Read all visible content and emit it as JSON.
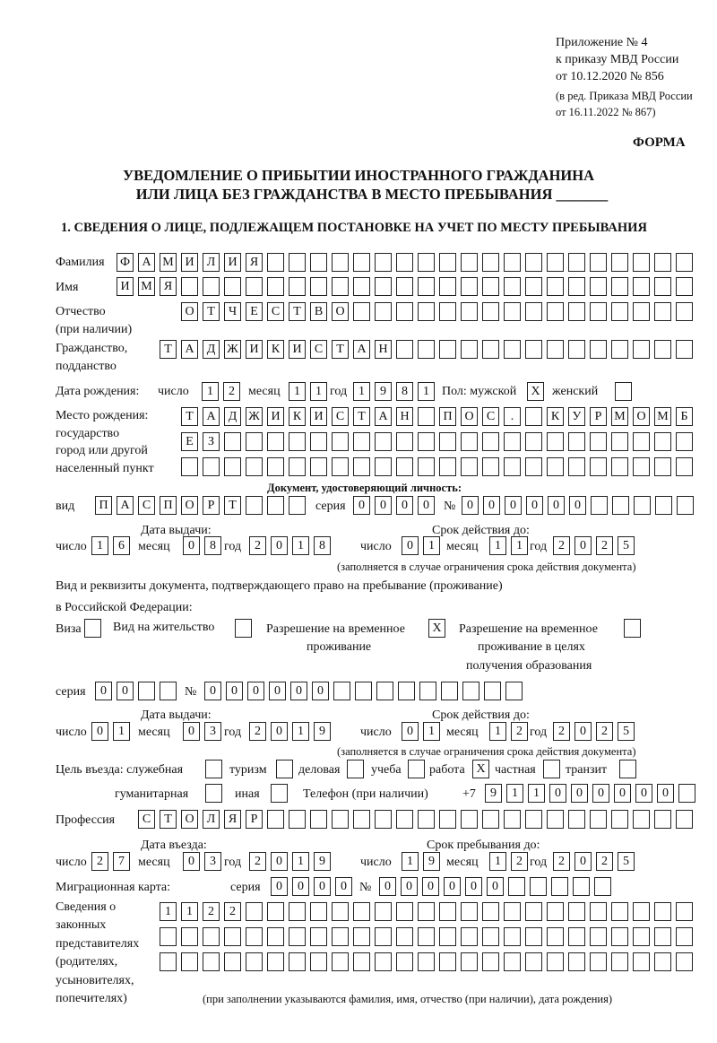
{
  "header": {
    "appendix": [
      "Приложение № 4",
      "к приказу МВД России",
      "от 10.12.2020 № 856"
    ],
    "amendment": [
      "(в ред. Приказа МВД России",
      "от 16.11.2022 № 867)"
    ],
    "form_label": "ФОРМА",
    "title": [
      "УВЕДОМЛЕНИЕ О ПРИБЫТИИ ИНОСТРАННОГО ГРАЖДАНИНА",
      "ИЛИ ЛИЦА БЕЗ ГРАЖДАНСТВА В МЕСТО ПРЕБЫВАНИЯ _______"
    ],
    "section1": "1. СВЕДЕНИЯ О ЛИЦЕ, ПОДЛЕЖАЩЕМ ПОСТАНОВКЕ НА УЧЕТ ПО МЕСТУ ПРЕБЫВАНИЯ"
  },
  "labels": {
    "surname": "Фамилия",
    "name": "Имя",
    "patronymic": "Отчество",
    "patronymic_note": "(при наличии)",
    "citizenship": "Гражданство,",
    "citizenship2": "подданство",
    "birth_date": "Дата рождения:",
    "day": "число",
    "month": "месяц",
    "year": "год",
    "sex": "Пол: мужской",
    "female": "женский",
    "birth_place": [
      "Место рождения:",
      "государство",
      "город или другой",
      "населенный пункт"
    ],
    "id_doc": "Документ, удостоверяющий личность:",
    "kind": "вид",
    "series": "серия",
    "number": "№",
    "issue_date": "Дата выдачи:",
    "valid_until": "Срок действия до:",
    "valid_note": "(заполняется в случае ограничения срока действия документа)",
    "right_doc": [
      "Вид и реквизиты документа, подтверждающего право на пребывание (проживание)",
      "в Российской Федерации:"
    ],
    "visa": "Виза",
    "residence": "Вид на жительство",
    "trp": [
      "Разрешение на временное",
      "проживание"
    ],
    "trp_edu": [
      "Разрешение на временное",
      "проживание в целях",
      "получения образования"
    ],
    "purpose": "Цель въезда: служебная",
    "tourism": "туризм",
    "business": "деловая",
    "study": "учеба",
    "work": "работа",
    "private": "частная",
    "transit": "транзит",
    "humanitarian": "гуманитарная",
    "other": "иная",
    "phone": "Телефон (при наличии)",
    "phone_prefix": "+7",
    "profession": "Профессия",
    "entry_date": "Дата въезда:",
    "stay_until": "Срок пребывания до:",
    "migration_card": "Миграционная карта:",
    "legal_reps": [
      "Сведения о",
      "законных",
      "представителях",
      "(родителях,",
      "усыновителях,",
      "попечителях)"
    ],
    "legal_reps_note": "(при заполнении указываются фамилия, имя, отчество (при наличии), дата рождения)"
  },
  "fields": {
    "surname": "ФАМИЛИЯ",
    "name": "ИМЯ",
    "patronymic": "ОТЧЕСТВО",
    "citizenship": "ТАДЖИКИСТАН",
    "birth_day": "12",
    "birth_month": "11",
    "birth_year": "1981",
    "sex_male": "X",
    "sex_female": "",
    "birth_place": [
      "ТАДЖИКИСТАН ПОС. КУРМОМБ",
      "ЕЗ",
      ""
    ],
    "doc_kind": "ПАСПОРТ",
    "doc_series": "0000",
    "doc_number": "000000",
    "doc_issue": {
      "day": "16",
      "month": "08",
      "year": "2018"
    },
    "doc_valid": {
      "day": "01",
      "month": "11",
      "year": "2025"
    },
    "right_doc_type": {
      "visa": "",
      "residence": "",
      "trp": "X",
      "trp_edu": ""
    },
    "right_series": "00",
    "right_number": "000000",
    "right_issue": {
      "day": "01",
      "month": "03",
      "year": "2019"
    },
    "right_valid": {
      "day": "01",
      "month": "12",
      "year": "2025"
    },
    "purpose": {
      "official": "",
      "tourism": "",
      "business": "",
      "study": "",
      "work": "X",
      "private": "",
      "transit": "",
      "humanitarian": "",
      "other": ""
    },
    "phone": "911000000",
    "profession": "СТОЛЯР",
    "entry": {
      "day": "27",
      "month": "03",
      "year": "2019"
    },
    "stay_until": {
      "day": "19",
      "month": "12",
      "year": "2025"
    },
    "migration_series": "0000",
    "migration_number": "000000",
    "legal_reps": [
      "1122",
      "",
      ""
    ]
  }
}
